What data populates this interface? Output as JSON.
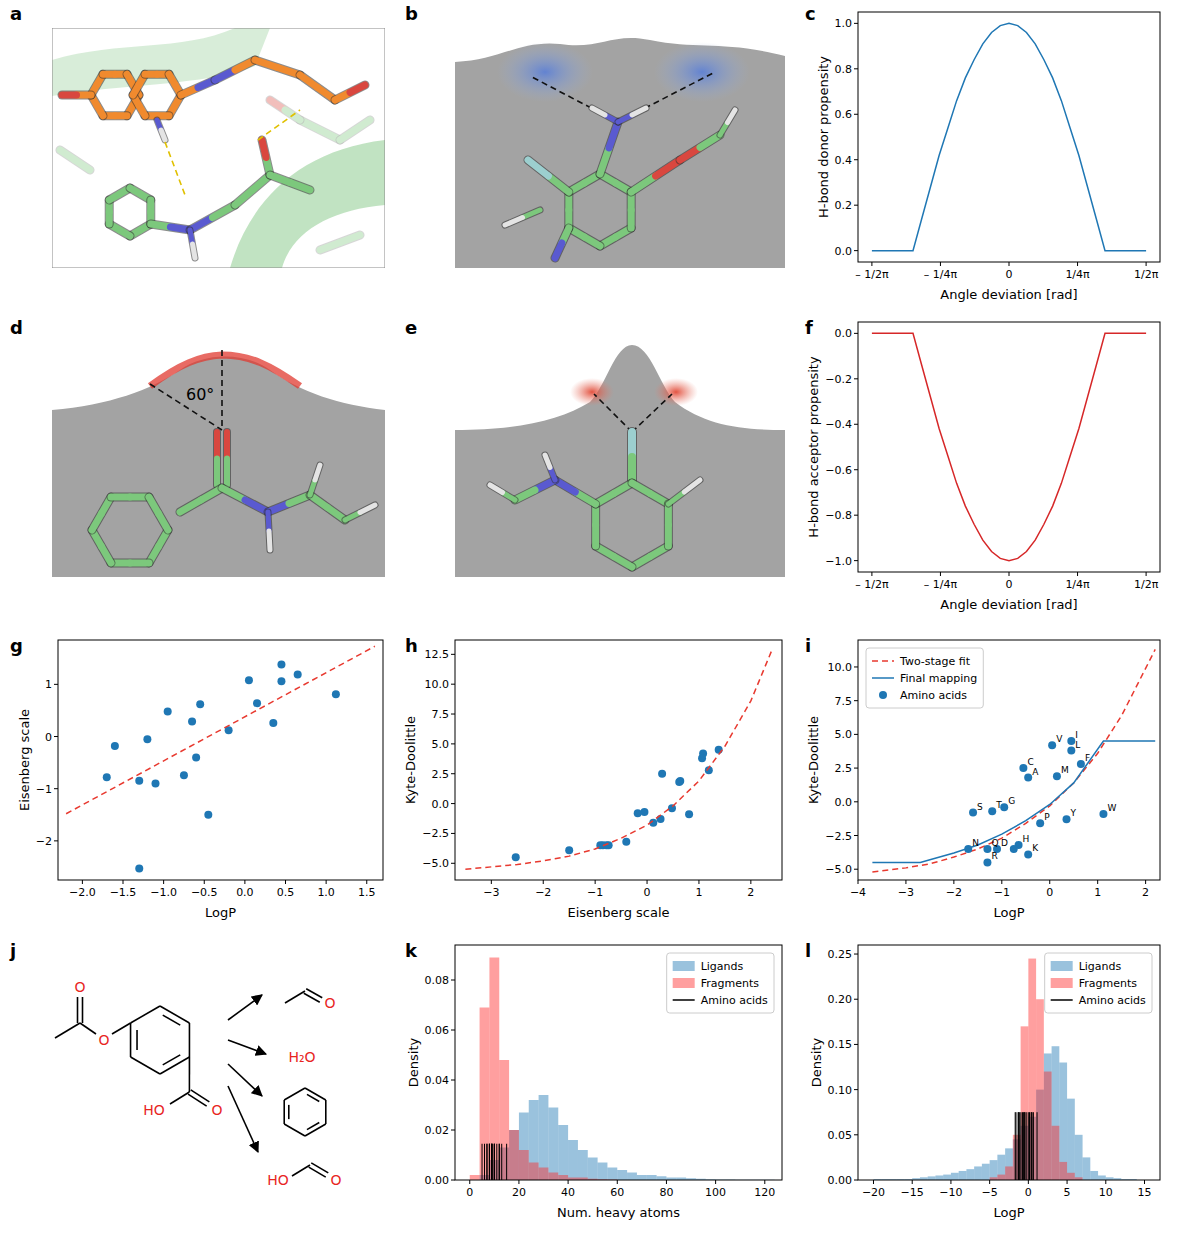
{
  "images": [
    {
      "panel_label": "a"
    },
    {
      "panel_label": "b"
    },
    {
      "panel_label": "d",
      "annotation": "60°"
    },
    {
      "panel_label": "e"
    }
  ],
  "chart_data": [
    {
      "panel_label": "c",
      "type": "line",
      "x_label": "Angle deviation [rad]",
      "y_label": "H-bond donor propensity",
      "xlim": [
        -1.73,
        1.73
      ],
      "ylim": [
        -0.05,
        1.05
      ],
      "xticks": [
        {
          "value": -1.5708,
          "label": "– 1/2π"
        },
        {
          "value": -0.7854,
          "label": "– 1/4π"
        },
        0,
        {
          "value": 0.7854,
          "label": "1/4π"
        },
        {
          "value": 1.5708,
          "label": "1/2π"
        }
      ],
      "yticks": [
        {
          "value": 0,
          "label": "0.0"
        },
        0.2,
        0.4,
        0.6,
        0.8,
        {
          "value": 1,
          "label": "1.0"
        }
      ],
      "series": [
        {
          "color": "#1f77b4",
          "x": [
            -1.5708,
            -1.1,
            -1.0,
            -0.9,
            -0.8,
            -0.7,
            -0.6,
            -0.5,
            -0.4,
            -0.3,
            -0.2,
            -0.1,
            0,
            0.1,
            0.2,
            0.3,
            0.4,
            0.5,
            0.6,
            0.7,
            0.8,
            0.9,
            1.0,
            1.1,
            1.5708
          ],
          "values": [
            0,
            0,
            0.14,
            0.28,
            0.42,
            0.54,
            0.66,
            0.76,
            0.84,
            0.91,
            0.96,
            0.99,
            1,
            0.99,
            0.96,
            0.91,
            0.84,
            0.76,
            0.66,
            0.54,
            0.42,
            0.28,
            0.14,
            0,
            0
          ]
        }
      ]
    },
    {
      "panel_label": "f",
      "type": "line",
      "x_label": "Angle deviation [rad]",
      "y_label": "H-bond acceptor propensity",
      "xlim": [
        -1.73,
        1.73
      ],
      "ylim": [
        -1.05,
        0.05
      ],
      "xticks": [
        {
          "value": -1.5708,
          "label": "– 1/2π"
        },
        {
          "value": -0.7854,
          "label": "– 1/4π"
        },
        0,
        {
          "value": 0.7854,
          "label": "1/4π"
        },
        {
          "value": 1.5708,
          "label": "1/2π"
        }
      ],
      "yticks": [
        {
          "value": -1,
          "label": "−1.0"
        },
        {
          "value": -0.8,
          "label": "−0.8"
        },
        {
          "value": -0.6,
          "label": "−0.6"
        },
        {
          "value": -0.4,
          "label": "−0.4"
        },
        {
          "value": -0.2,
          "label": "−0.2"
        },
        {
          "value": 0,
          "label": "0.0"
        }
      ],
      "series": [
        {
          "color": "#d62728",
          "x": [
            -1.5708,
            -1.1,
            -1.0,
            -0.9,
            -0.8,
            -0.7,
            -0.6,
            -0.5,
            -0.4,
            -0.3,
            -0.2,
            -0.1,
            0,
            0.1,
            0.2,
            0.3,
            0.4,
            0.5,
            0.6,
            0.7,
            0.8,
            0.9,
            1.0,
            1.1,
            1.5708
          ],
          "values": [
            0,
            0,
            -0.14,
            -0.28,
            -0.42,
            -0.54,
            -0.66,
            -0.76,
            -0.84,
            -0.91,
            -0.96,
            -0.99,
            -1,
            -0.99,
            -0.96,
            -0.91,
            -0.84,
            -0.76,
            -0.66,
            -0.54,
            -0.42,
            -0.28,
            -0.14,
            0,
            0
          ]
        }
      ]
    },
    {
      "panel_label": "g",
      "type": "scatter",
      "x_label": "LogP",
      "y_label": "Eisenberg scale",
      "xlim": [
        -2.3,
        1.7
      ],
      "ylim": [
        -2.75,
        1.85
      ],
      "xticks": [
        {
          "value": -2,
          "label": "−2.0"
        },
        {
          "value": -1.5,
          "label": "−1.5"
        },
        {
          "value": -1,
          "label": "−1.0"
        },
        {
          "value": -0.5,
          "label": "−0.5"
        },
        {
          "value": 0,
          "label": "0.0"
        },
        0.5,
        {
          "value": 1,
          "label": "1.0"
        },
        1.5
      ],
      "yticks": [
        {
          "value": -2,
          "label": "−2"
        },
        {
          "value": -1,
          "label": "−1"
        },
        0,
        1
      ],
      "series": [
        {
          "type": "scatter",
          "color": "#1f77b4",
          "marker": "circle",
          "x": [
            -1.7,
            -1.6,
            -1.3,
            -1.3,
            -1.2,
            -1.1,
            -0.95,
            -0.75,
            -0.65,
            -0.6,
            -0.55,
            -0.45,
            -0.2,
            0.05,
            0.15,
            0.35,
            0.45,
            0.45,
            0.65,
            1.12
          ],
          "values": [
            -0.78,
            -0.18,
            -0.85,
            -2.53,
            -0.05,
            -0.9,
            0.48,
            -0.74,
            0.29,
            -0.4,
            0.62,
            -1.5,
            0.12,
            1.08,
            0.64,
            0.26,
            1.38,
            1.06,
            1.19,
            0.81
          ]
        },
        {
          "type": "line",
          "color": "#e8392f",
          "line_style": "dashed",
          "x": [
            -2.2,
            1.6
          ],
          "values": [
            -1.48,
            1.73
          ]
        }
      ]
    },
    {
      "panel_label": "h",
      "type": "scatter",
      "x_label": "Eisenberg scale",
      "y_label": "Kyte-Doolittle",
      "xlim": [
        -3.7,
        2.6
      ],
      "ylim": [
        -6.4,
        13.7
      ],
      "xticks": [
        {
          "value": -3,
          "label": "−3"
        },
        {
          "value": -2,
          "label": "−2"
        },
        {
          "value": -1,
          "label": "−1"
        },
        0,
        1,
        2
      ],
      "yticks": [
        {
          "value": -5,
          "label": "−5.0"
        },
        {
          "value": -2.5,
          "label": "−2.5"
        },
        {
          "value": 0,
          "label": "0.0"
        },
        2.5,
        {
          "value": 5,
          "label": "5.0"
        },
        7.5,
        {
          "value": 10,
          "label": "10.0"
        },
        12.5
      ],
      "series": [
        {
          "type": "scatter",
          "color": "#1f77b4",
          "marker": "circle",
          "x": [
            1.38,
            1.08,
            1.06,
            1.19,
            0.29,
            0.64,
            0.62,
            0.48,
            -0.05,
            -0.18,
            0.81,
            0.26,
            0.12,
            -0.4,
            -0.74,
            -0.85,
            -0.9,
            -0.78,
            -1.5,
            -2.53
          ],
          "values": [
            4.5,
            4.2,
            3.8,
            2.8,
            2.5,
            1.9,
            1.8,
            -0.4,
            -0.7,
            -0.8,
            -0.9,
            -1.3,
            -1.6,
            -3.2,
            -3.5,
            -3.5,
            -3.5,
            -3.5,
            -3.9,
            -4.5
          ]
        },
        {
          "type": "line",
          "color": "#e8392f",
          "line_style": "dashed",
          "x": [
            -3.5,
            -3,
            -2.5,
            -2,
            -1.5,
            -1,
            -0.5,
            0,
            0.5,
            1,
            1.5,
            2,
            2.4
          ],
          "values": [
            -5.5,
            -5.3,
            -5.1,
            -4.8,
            -4.4,
            -3.8,
            -2.9,
            -1.8,
            -0.2,
            1.9,
            4.8,
            8.6,
            12.8
          ]
        }
      ]
    },
    {
      "panel_label": "i",
      "type": "scatter",
      "x_label": "LogP",
      "y_label": "Kyte-Doolittle",
      "legend": "upper left",
      "xlim": [
        -4,
        2.3
      ],
      "ylim": [
        -5.8,
        12
      ],
      "xticks": [
        {
          "value": -4,
          "label": "−4"
        },
        {
          "value": -3,
          "label": "−3"
        },
        {
          "value": -2,
          "label": "−2"
        },
        {
          "value": -1,
          "label": "−1"
        },
        0,
        1,
        2
      ],
      "yticks": [
        {
          "value": -5,
          "label": "−5.0"
        },
        {
          "value": -2.5,
          "label": "−2.5"
        },
        {
          "value": 0,
          "label": "0.0"
        },
        2.5,
        {
          "value": 5,
          "label": "5.0"
        },
        7.5,
        {
          "value": 10,
          "label": "10.0"
        }
      ],
      "series": [
        {
          "name": "Two-stage fit",
          "type": "line",
          "color": "#e8392f",
          "line_style": "dashed",
          "x": [
            -3.7,
            -3,
            -2.5,
            -2,
            -1.5,
            -1,
            -0.5,
            0,
            0.5,
            1,
            1.5,
            2,
            2.2
          ],
          "values": [
            -5.2,
            -4.9,
            -4.6,
            -4.1,
            -3.5,
            -2.7,
            -1.6,
            -0.3,
            1.4,
            3.6,
            6.4,
            9.9,
            11.3
          ]
        },
        {
          "name": "Final mapping",
          "type": "line",
          "color": "#1f77b4",
          "x": [
            -3.7,
            -2.7,
            -2.5,
            -2,
            -1.5,
            -1,
            -0.5,
            0,
            0.5,
            1.12,
            2.2
          ],
          "values": [
            -4.5,
            -4.5,
            -4.3,
            -3.8,
            -3.2,
            -2.4,
            -1.4,
            -0.2,
            1.4,
            4.5,
            4.5
          ]
        },
        {
          "name": "Amino acids",
          "type": "scatter",
          "color": "#1f77b4",
          "marker": "circle",
          "x": [
            0.45,
            0.05,
            0.45,
            0.65,
            -0.55,
            0.15,
            -0.45,
            -0.95,
            -1.2,
            -1.6,
            1.12,
            0.35,
            -0.2,
            -0.65,
            -0.75,
            -1.3,
            -1.1,
            -1.7,
            -0.45,
            -1.3
          ],
          "values": [
            4.5,
            4.2,
            3.8,
            2.8,
            2.5,
            1.9,
            1.8,
            -0.4,
            -0.7,
            -0.8,
            -0.9,
            -1.3,
            -1.6,
            -3.2,
            -3.5,
            -3.5,
            -3.5,
            -3.5,
            -3.9,
            -4.5
          ],
          "point_labels": [
            "I",
            "V",
            "L",
            "F",
            "C",
            "M",
            "A",
            "G",
            "T",
            "S",
            "W",
            "Y",
            "P",
            "H",
            null,
            "Q",
            "D",
            "N",
            "K",
            "R"
          ]
        }
      ]
    },
    {
      "panel_label": "k",
      "type": "histogram",
      "x_label": "Num. heavy atoms",
      "y_label": "Density",
      "legend": "upper right",
      "xlim": [
        -6,
        127
      ],
      "ylim": [
        0,
        0.094
      ],
      "xticks": [
        0,
        20,
        40,
        60,
        80,
        100,
        120
      ],
      "yticks": [
        {
          "value": 0,
          "label": "0.00"
        },
        0.02,
        0.04,
        0.06,
        0.08
      ],
      "bins": [
        0,
        4,
        8,
        12,
        16,
        20,
        24,
        28,
        32,
        36,
        40,
        44,
        48,
        52,
        56,
        60,
        64,
        68,
        72,
        76,
        80,
        84,
        88,
        92,
        96,
        100,
        104,
        108,
        112,
        116,
        120,
        124
      ],
      "series": [
        {
          "name": "Ligands",
          "type": "bar",
          "color": "#1f77b4",
          "values": [
            0,
            0.002,
            0.008,
            0.013,
            0.02,
            0.027,
            0.032,
            0.034,
            0.029,
            0.022,
            0.016,
            0.012,
            0.009,
            0.007,
            0.005,
            0.004,
            0.003,
            0.002,
            0.002,
            0.0015,
            0.001,
            0.001,
            0.0007,
            0.0005,
            0.0003,
            0.0002,
            0.0002,
            0.0001,
            0.0001,
            0.0001,
            0.0001
          ]
        },
        {
          "name": "Fragments",
          "type": "bar",
          "color": "#ff2a2a",
          "values": [
            0.002,
            0.069,
            0.089,
            0.048,
            0.02,
            0.012,
            0.007,
            0.005,
            0.003,
            0.002,
            0.001,
            0.001,
            0.0005,
            0.0003,
            0.0002,
            0,
            0,
            0,
            0,
            0,
            0,
            0,
            0,
            0,
            0,
            0,
            0,
            0,
            0,
            0,
            0
          ]
        },
        {
          "name": "Amino acids",
          "type": "vlines",
          "color": "#000000",
          "x": [
            5,
            6,
            7,
            7,
            8,
            8,
            8,
            9,
            9,
            9,
            9,
            9,
            10,
            10,
            10,
            11,
            12,
            12,
            13,
            15
          ],
          "values": [
            0.0145,
            0.0145,
            0.0145,
            0.0145,
            0.0145,
            0.0145,
            0.0145,
            0.0145,
            0.0145,
            0.0145,
            0.0145,
            0.0145,
            0.0145,
            0.0145,
            0.0145,
            0.0145,
            0.0145,
            0.0145,
            0.0145,
            0.0145
          ]
        }
      ]
    },
    {
      "panel_label": "l",
      "type": "histogram",
      "x_label": "LogP",
      "y_label": "Density",
      "legend": "upper right",
      "xlim": [
        -22,
        17
      ],
      "ylim": [
        0,
        0.26
      ],
      "xticks": [
        {
          "value": -20,
          "label": "−20"
        },
        {
          "value": -15,
          "label": "−15"
        },
        {
          "value": -10,
          "label": "−10"
        },
        {
          "value": -5,
          "label": "−5"
        },
        0,
        5,
        10,
        15
      ],
      "yticks": [
        {
          "value": 0,
          "label": "0.00"
        },
        0.05,
        {
          "value": 0.1,
          "label": "0.10"
        },
        0.15,
        {
          "value": 0.2,
          "label": "0.20"
        },
        0.25
      ],
      "bins": [
        -20,
        -19,
        -18,
        -17,
        -16,
        -15,
        -14,
        -13,
        -12,
        -11,
        -10,
        -9,
        -8,
        -7,
        -6,
        -5,
        -4,
        -3,
        -2,
        -1,
        0,
        1,
        2,
        3,
        4,
        5,
        6,
        7,
        8,
        9,
        10,
        11,
        12,
        13,
        14
      ],
      "series": [
        {
          "name": "Ligands",
          "type": "bar",
          "color": "#1f77b4",
          "values": [
            0.001,
            0.001,
            0.001,
            0.001,
            0.001,
            0.002,
            0.003,
            0.004,
            0.005,
            0.006,
            0.008,
            0.01,
            0.012,
            0.015,
            0.018,
            0.022,
            0.028,
            0.035,
            0.045,
            0.06,
            0.07,
            0.1,
            0.14,
            0.148,
            0.13,
            0.09,
            0.05,
            0.025,
            0.01,
            0.005,
            0.003,
            0.002,
            0.001,
            0.001
          ]
        },
        {
          "name": "Fragments",
          "type": "bar",
          "color": "#ff2a2a",
          "values": [
            0,
            0,
            0,
            0,
            0,
            0,
            0,
            0,
            0,
            0,
            0,
            0,
            0,
            0,
            0,
            0.003,
            0.006,
            0.015,
            0.05,
            0.17,
            0.245,
            0.2,
            0.12,
            0.06,
            0.02,
            0.008,
            0.003,
            0,
            0,
            0,
            0,
            0,
            0,
            0
          ]
        },
        {
          "name": "Amino acids",
          "type": "vlines",
          "color": "#000000",
          "x": [
            0.45,
            0.05,
            0.45,
            0.65,
            -0.55,
            0.15,
            -0.45,
            -0.95,
            -1.2,
            -1.6,
            1.12,
            0.35,
            -0.2,
            -0.65,
            -0.75,
            -1.3,
            -1.1,
            -1.7,
            -0.45,
            -1.3
          ],
          "values": [
            0.075,
            0.075,
            0.075,
            0.075,
            0.075,
            0.075,
            0.075,
            0.075,
            0.075,
            0.075,
            0.075,
            0.075,
            0.075,
            0.075,
            0.075,
            0.075,
            0.075,
            0.075,
            0.075,
            0.075
          ]
        }
      ]
    }
  ],
  "diagram": {
    "panel_label": "j",
    "molecule_labels": [
      "O",
      "O",
      "HO",
      "O"
    ],
    "fragment_labels": [
      "O",
      "H₂O",
      "HO",
      "O"
    ]
  }
}
